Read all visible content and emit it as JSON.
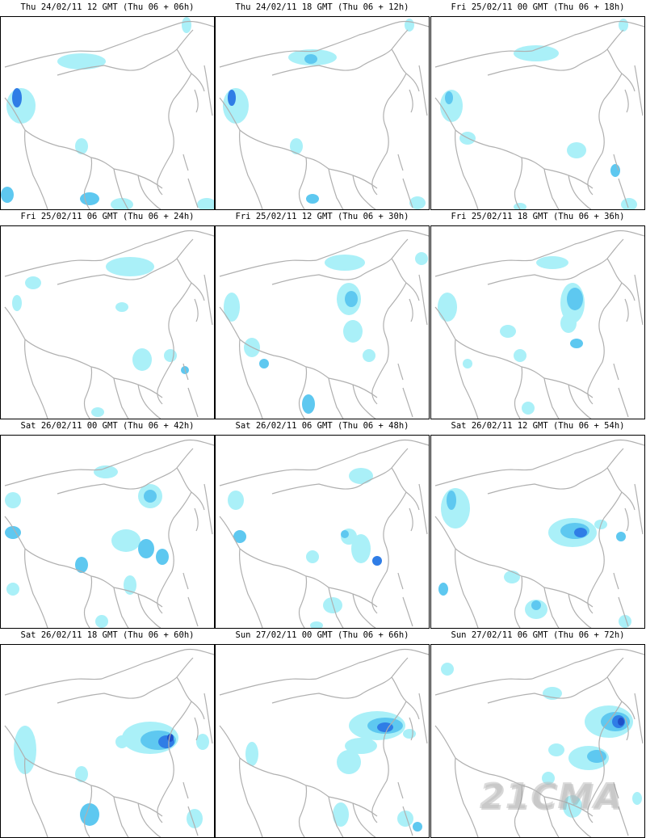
{
  "panels": [
    {
      "title": "Thu 24/02/11 12 GMT (Thu 06 + 06h)"
    },
    {
      "title": "Thu 24/02/11 18 GMT (Thu 06 + 12h)"
    },
    {
      "title": "Fri 25/02/11 00 GMT (Thu 06 + 18h)"
    },
    {
      "title": "Fri 25/02/11 06 GMT (Thu 06 + 24h)"
    },
    {
      "title": "Fri 25/02/11 12 GMT (Thu 06 + 30h)"
    },
    {
      "title": "Fri 25/02/11 18 GMT (Thu 06 + 36h)"
    },
    {
      "title": "Sat 26/02/11 00 GMT (Thu 06 + 42h)"
    },
    {
      "title": "Sat 26/02/11 06 GMT (Thu 06 + 48h)"
    },
    {
      "title": "Sat 26/02/11 12 GMT (Thu 06 + 54h)"
    },
    {
      "title": "Sat 26/02/11 18 GMT (Thu 06 + 60h)"
    },
    {
      "title": "Sun 27/02/11 00 GMT (Thu 06 + 66h)"
    },
    {
      "title": "Sun 27/02/11 06 GMT (Thu 06 + 72h)"
    }
  ],
  "watermark": "21CMA",
  "colors": {
    "light": "#aaf0f8",
    "medium": "#5ec8f0",
    "dark": "#2f7de6",
    "darker": "#1f50c8",
    "border": "#b0b0b0"
  }
}
